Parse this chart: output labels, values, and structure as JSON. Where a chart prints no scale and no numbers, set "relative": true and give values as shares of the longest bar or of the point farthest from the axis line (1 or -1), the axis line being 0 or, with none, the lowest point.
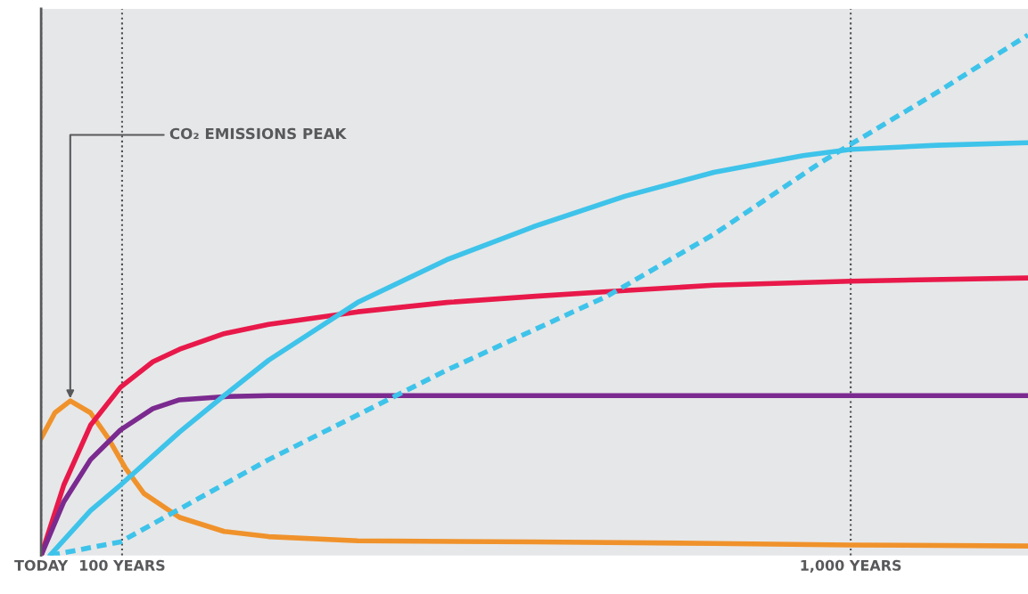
{
  "chart_data": {
    "type": "line",
    "relative": true,
    "line_style": "solid",
    "marker": "none",
    "grid": "x",
    "legend": false,
    "tick_labels": "x",
    "xlim": [
      0,
      1219
    ],
    "xticks": [
      {
        "value": 0,
        "label": "TODAY"
      },
      {
        "value": 100,
        "label": "100 YEARS"
      },
      {
        "value": 1000,
        "label": "1,000 YEARS"
      }
    ],
    "annotations": [
      {
        "text": "CO₂ EMISSIONS PEAK",
        "x": 36,
        "y": 0.297
      }
    ],
    "series": [
      {
        "color": "#f0922b",
        "x": [
          0,
          17,
          36,
          61,
          83,
          104,
          127,
          171,
          226,
          281,
          391,
          611,
          831,
          1000,
          1219
        ],
        "values": [
          0.225,
          0.274,
          0.297,
          0.274,
          0.225,
          0.168,
          0.119,
          0.073,
          0.046,
          0.036,
          0.028,
          0.026,
          0.023,
          0.02,
          0.018
        ]
      },
      {
        "color": "#e8194a",
        "x": [
          0,
          28,
          61,
          98,
          138,
          171,
          226,
          281,
          391,
          501,
          611,
          721,
          831,
          1000,
          1219
        ],
        "values": [
          0,
          0.135,
          0.25,
          0.323,
          0.372,
          0.396,
          0.426,
          0.444,
          0.468,
          0.486,
          0.498,
          0.509,
          0.519,
          0.527,
          0.533
        ]
      },
      {
        "color": "#7b2a8f",
        "x": [
          0,
          28,
          61,
          98,
          138,
          171,
          226,
          281,
          611,
          1219
        ],
        "values": [
          0,
          0.103,
          0.184,
          0.241,
          0.282,
          0.299,
          0.305,
          0.307,
          0.307,
          0.307
        ]
      },
      {
        "color": "#3ec3ea",
        "x": [
          11,
          61,
          98,
          171,
          226,
          281,
          391,
          501,
          611,
          721,
          831,
          941,
          1000,
          1106,
          1219
        ],
        "values": [
          0,
          0.086,
          0.135,
          0.237,
          0.307,
          0.375,
          0.486,
          0.568,
          0.633,
          0.69,
          0.736,
          0.768,
          0.78,
          0.788,
          0.793
        ]
      },
      {
        "color": "#3ec3ea",
        "line_style": "dashed",
        "x": [
          11,
          98,
          281,
          501,
          699,
          831,
          963,
          1106,
          1219
        ],
        "values": [
          0,
          0.026,
          0.184,
          0.356,
          0.498,
          0.617,
          0.755,
          0.889,
          1
        ]
      }
    ]
  }
}
